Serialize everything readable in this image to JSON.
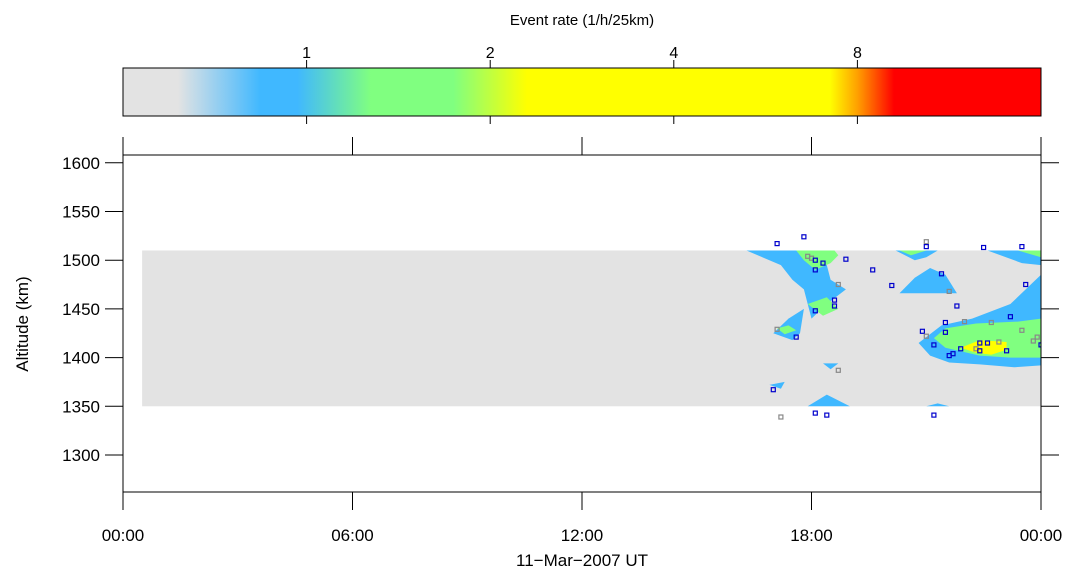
{
  "chart_data": {
    "type": "heatmap",
    "colorbar": {
      "label": "Event rate (1/h/25km)",
      "scale": "log",
      "range": [
        0.5,
        16
      ],
      "tick_labels": [
        "1",
        "2",
        "4",
        "8"
      ],
      "tick_values": [
        1,
        2,
        4,
        8
      ],
      "colors": {
        "low": "#e3e3e3",
        "blue": "#40b8ff",
        "green": "#80ff80",
        "yellow": "#ffff00",
        "orange": "#ffa000",
        "red": "#ff0000"
      }
    },
    "xlabel": "11−Mar−2007 UT",
    "ylabel": "Altitude (km)",
    "xlim_hours": [
      0,
      24
    ],
    "ylim": [
      1262,
      1608
    ],
    "xticks": [
      {
        "hour": 0,
        "label": "00:00"
      },
      {
        "hour": 6,
        "label": "06:00"
      },
      {
        "hour": 12,
        "label": "12:00"
      },
      {
        "hour": 18,
        "label": "18:00"
      },
      {
        "hour": 24,
        "label": "00:00"
      }
    ],
    "yticks": [
      {
        "value": 1300,
        "label": "1300"
      },
      {
        "value": 1350,
        "label": "1350"
      },
      {
        "value": 1400,
        "label": "1400"
      },
      {
        "value": 1450,
        "label": "1450"
      },
      {
        "value": 1500,
        "label": "1500"
      },
      {
        "value": 1550,
        "label": "1550"
      },
      {
        "value": 1600,
        "label": "1600"
      }
    ],
    "coverage": {
      "hours": [
        0.5,
        24
      ],
      "altitude": [
        1350,
        1510
      ],
      "color": "#e3e3e3"
    },
    "contours": [
      {
        "level": "blue",
        "color": "#40b8ff",
        "points": [
          [
            16.3,
            1510
          ],
          [
            18.2,
            1510
          ],
          [
            18.4,
            1495
          ],
          [
            18.5,
            1480
          ],
          [
            18.9,
            1470
          ],
          [
            18.4,
            1455
          ],
          [
            18.0,
            1440
          ],
          [
            17.8,
            1470
          ],
          [
            17.5,
            1480
          ],
          [
            17.2,
            1495
          ]
        ]
      },
      {
        "level": "blue",
        "color": "#40b8ff",
        "points": [
          [
            17.4,
            1440
          ],
          [
            17.8,
            1450
          ],
          [
            17.7,
            1425
          ],
          [
            17.5,
            1418
          ],
          [
            17.0,
            1425
          ]
        ]
      },
      {
        "level": "blue",
        "color": "#40b8ff",
        "points": [
          [
            20.2,
            1510
          ],
          [
            21.3,
            1510
          ],
          [
            21.0,
            1503
          ],
          [
            20.7,
            1500
          ]
        ]
      },
      {
        "level": "blue",
        "color": "#40b8ff",
        "points": [
          [
            20.3,
            1466
          ],
          [
            21.8,
            1466
          ],
          [
            21.5,
            1485
          ],
          [
            21.1,
            1492
          ],
          [
            20.7,
            1482
          ]
        ]
      },
      {
        "level": "blue",
        "color": "#40b8ff",
        "points": [
          [
            22.6,
            1510
          ],
          [
            24.0,
            1510
          ],
          [
            24.0,
            1495
          ],
          [
            23.5,
            1497
          ]
        ]
      },
      {
        "level": "blue",
        "color": "#40b8ff",
        "points": [
          [
            20.8,
            1415
          ],
          [
            21.4,
            1433
          ],
          [
            22.2,
            1440
          ],
          [
            23.2,
            1455
          ],
          [
            24.0,
            1485
          ],
          [
            24.0,
            1392
          ],
          [
            23.3,
            1390
          ],
          [
            22.4,
            1393
          ],
          [
            21.6,
            1395
          ],
          [
            21.1,
            1402
          ]
        ]
      },
      {
        "level": "blue",
        "color": "#40b8ff",
        "points": [
          [
            18.3,
            1394
          ],
          [
            18.7,
            1394
          ],
          [
            18.5,
            1388
          ]
        ]
      },
      {
        "level": "blue",
        "color": "#40b8ff",
        "points": [
          [
            16.9,
            1372
          ],
          [
            17.3,
            1375
          ],
          [
            17.2,
            1368
          ]
        ]
      },
      {
        "level": "blue",
        "color": "#40b8ff",
        "points": [
          [
            17.9,
            1350
          ],
          [
            19.0,
            1350
          ],
          [
            18.4,
            1362
          ]
        ]
      },
      {
        "level": "blue",
        "color": "#40b8ff",
        "points": [
          [
            21.0,
            1350
          ],
          [
            21.6,
            1350
          ],
          [
            21.3,
            1353
          ]
        ]
      },
      {
        "level": "green",
        "color": "#80ff80",
        "points": [
          [
            17.6,
            1510
          ],
          [
            18.6,
            1510
          ],
          [
            18.7,
            1505
          ],
          [
            18.5,
            1497
          ],
          [
            18.1,
            1490
          ],
          [
            17.8,
            1500
          ]
        ]
      },
      {
        "level": "green",
        "color": "#80ff80",
        "points": [
          [
            17.9,
            1455
          ],
          [
            18.4,
            1462
          ],
          [
            18.7,
            1450
          ],
          [
            18.3,
            1443
          ]
        ]
      },
      {
        "level": "green",
        "color": "#80ff80",
        "points": [
          [
            17.1,
            1430
          ],
          [
            17.4,
            1433
          ],
          [
            17.6,
            1428
          ],
          [
            17.3,
            1424
          ]
        ]
      },
      {
        "level": "green",
        "color": "#80ff80",
        "points": [
          [
            20.3,
            1510
          ],
          [
            21.0,
            1510
          ],
          [
            20.6,
            1505
          ]
        ]
      },
      {
        "level": "green",
        "color": "#80ff80",
        "points": [
          [
            23.4,
            1510
          ],
          [
            24.0,
            1510
          ],
          [
            24.0,
            1503
          ]
        ]
      },
      {
        "level": "green",
        "color": "#80ff80",
        "points": [
          [
            21.2,
            1420
          ],
          [
            21.5,
            1430
          ],
          [
            22.3,
            1435
          ],
          [
            23.4,
            1437
          ],
          [
            24.0,
            1440
          ],
          [
            24.0,
            1400
          ],
          [
            23.2,
            1400
          ],
          [
            22.4,
            1402
          ],
          [
            21.5,
            1410
          ]
        ]
      },
      {
        "level": "yellow",
        "color": "#ffff00",
        "points": [
          [
            21.9,
            1410
          ],
          [
            22.4,
            1418
          ],
          [
            23.1,
            1416
          ],
          [
            23.1,
            1408
          ],
          [
            22.7,
            1403
          ],
          [
            22.3,
            1405
          ]
        ]
      }
    ],
    "events": [
      {
        "hour": 17.1,
        "altitude": 1517,
        "color": "#0000cc"
      },
      {
        "hour": 17.8,
        "altitude": 1524,
        "color": "#0000cc"
      },
      {
        "hour": 17.9,
        "altitude": 1504,
        "color": "#888888"
      },
      {
        "hour": 18.0,
        "altitude": 1502,
        "color": "#888888"
      },
      {
        "hour": 18.1,
        "altitude": 1500,
        "color": "#0000cc"
      },
      {
        "hour": 18.3,
        "altitude": 1497,
        "color": "#0000cc"
      },
      {
        "hour": 18.9,
        "altitude": 1501,
        "color": "#0000cc"
      },
      {
        "hour": 18.1,
        "altitude": 1490,
        "color": "#0000cc"
      },
      {
        "hour": 19.6,
        "altitude": 1490,
        "color": "#0000cc"
      },
      {
        "hour": 18.7,
        "altitude": 1475,
        "color": "#888888"
      },
      {
        "hour": 18.6,
        "altitude": 1459,
        "color": "#0000cc"
      },
      {
        "hour": 18.6,
        "altitude": 1453,
        "color": "#0000cc"
      },
      {
        "hour": 18.1,
        "altitude": 1448,
        "color": "#0000cc"
      },
      {
        "hour": 17.1,
        "altitude": 1429,
        "color": "#888888"
      },
      {
        "hour": 17.6,
        "altitude": 1421,
        "color": "#0000cc"
      },
      {
        "hour": 20.1,
        "altitude": 1474,
        "color": "#0000cc"
      },
      {
        "hour": 21.0,
        "altitude": 1519,
        "color": "#888888"
      },
      {
        "hour": 21.0,
        "altitude": 1514,
        "color": "#0000cc"
      },
      {
        "hour": 21.4,
        "altitude": 1486,
        "color": "#0000cc"
      },
      {
        "hour": 21.6,
        "altitude": 1468,
        "color": "#888888"
      },
      {
        "hour": 21.8,
        "altitude": 1453,
        "color": "#0000cc"
      },
      {
        "hour": 22.5,
        "altitude": 1513,
        "color": "#0000cc"
      },
      {
        "hour": 23.5,
        "altitude": 1514,
        "color": "#0000cc"
      },
      {
        "hour": 23.6,
        "altitude": 1475,
        "color": "#0000cc"
      },
      {
        "hour": 21.5,
        "altitude": 1436,
        "color": "#0000cc"
      },
      {
        "hour": 20.9,
        "altitude": 1427,
        "color": "#0000cc"
      },
      {
        "hour": 21.0,
        "altitude": 1422,
        "color": "#888888"
      },
      {
        "hour": 21.5,
        "altitude": 1426,
        "color": "#0000cc"
      },
      {
        "hour": 22.0,
        "altitude": 1437,
        "color": "#888888"
      },
      {
        "hour": 22.7,
        "altitude": 1436,
        "color": "#888888"
      },
      {
        "hour": 23.2,
        "altitude": 1442,
        "color": "#0000cc"
      },
      {
        "hour": 23.5,
        "altitude": 1428,
        "color": "#888888"
      },
      {
        "hour": 23.9,
        "altitude": 1421,
        "color": "#888888"
      },
      {
        "hour": 23.8,
        "altitude": 1417,
        "color": "#888888"
      },
      {
        "hour": 24.0,
        "altitude": 1413,
        "color": "#0000cc"
      },
      {
        "hour": 21.2,
        "altitude": 1413,
        "color": "#0000cc"
      },
      {
        "hour": 21.9,
        "altitude": 1409,
        "color": "#0000cc"
      },
      {
        "hour": 22.4,
        "altitude": 1415,
        "color": "#0000cc"
      },
      {
        "hour": 22.6,
        "altitude": 1415,
        "color": "#0000cc"
      },
      {
        "hour": 22.9,
        "altitude": 1416,
        "color": "#888888"
      },
      {
        "hour": 22.3,
        "altitude": 1409,
        "color": "#888888"
      },
      {
        "hour": 21.7,
        "altitude": 1404,
        "color": "#0000cc"
      },
      {
        "hour": 21.6,
        "altitude": 1402,
        "color": "#0000cc"
      },
      {
        "hour": 22.4,
        "altitude": 1407,
        "color": "#0000cc"
      },
      {
        "hour": 23.1,
        "altitude": 1407,
        "color": "#0000cc"
      },
      {
        "hour": 18.7,
        "altitude": 1387,
        "color": "#888888"
      },
      {
        "hour": 17.0,
        "altitude": 1367,
        "color": "#0000cc"
      },
      {
        "hour": 18.1,
        "altitude": 1343,
        "color": "#0000cc"
      },
      {
        "hour": 18.4,
        "altitude": 1341,
        "color": "#0000cc"
      },
      {
        "hour": 17.2,
        "altitude": 1339,
        "color": "#888888"
      },
      {
        "hour": 21.2,
        "altitude": 1341,
        "color": "#0000cc"
      }
    ]
  }
}
